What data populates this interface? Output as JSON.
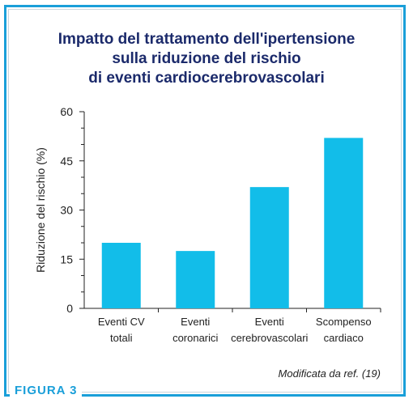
{
  "figure": {
    "label": "FIGURA 3",
    "source_note": "Modificata da ref. (19)"
  },
  "chart_data": {
    "type": "bar",
    "title_lines": [
      "Impatto del trattamento dell'ipertensione",
      "sulla riduzione del rischio",
      "di eventi cardiocerebrovascolari"
    ],
    "ylabel": "Riduzione del rischio (%)",
    "xlabel": "",
    "ylim": [
      0,
      60
    ],
    "yticks": [
      0,
      15,
      30,
      45,
      60
    ],
    "categories": [
      [
        "Eventi CV",
        "totali"
      ],
      [
        "Eventi",
        "coronarici"
      ],
      [
        "Eventi",
        "cerebrovascolari"
      ],
      [
        "Scompenso",
        "cardiaco"
      ]
    ],
    "values": [
      20,
      17.5,
      37,
      52
    ],
    "colors": {
      "bar": "#12bde9",
      "title": "#1b2a6b",
      "accent": "#1a9fd9",
      "axis": "#222222"
    }
  }
}
